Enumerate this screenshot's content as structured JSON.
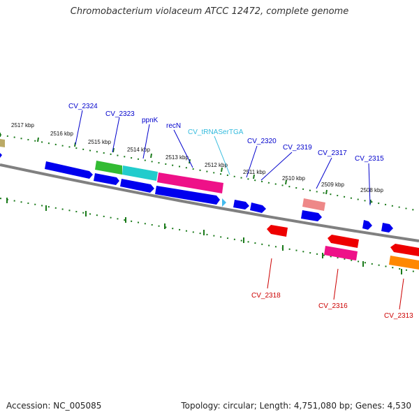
{
  "title": "Chromobacterium violaceum ATCC 12472, complete genome",
  "footer": {
    "accession": "Accession: NC_005085",
    "topology": "Topology: circular; Length: 4,751,080 bp; Genes: 4,530"
  },
  "scale_labels": [
    "2517 kbp",
    "2516 kbp",
    "2515 kbp",
    "2514 kbp",
    "2513 kbp",
    "2512 kbp",
    "2511 kbp",
    "2510 kbp",
    "2509 kbp",
    "2508 kbp"
  ],
  "gene_labels_forward": [
    {
      "name": "CV_2324",
      "color": "#0000cc"
    },
    {
      "name": "CV_2323",
      "color": "#0000cc"
    },
    {
      "name": "ppnK",
      "color": "#0000cc"
    },
    {
      "name": "recN",
      "color": "#0000cc"
    },
    {
      "name": "CV_tRNASerTGA",
      "color": "#33bbdd"
    },
    {
      "name": "CV_2320",
      "color": "#0000cc"
    },
    {
      "name": "CV_2319",
      "color": "#0000cc"
    },
    {
      "name": "CV_2317",
      "color": "#0000cc"
    },
    {
      "name": "CV_2315",
      "color": "#0000cc"
    }
  ],
  "gene_labels_reverse": [
    {
      "name": "CV_2318",
      "color": "#cc0000"
    },
    {
      "name": "CV_2316",
      "color": "#cc0000"
    },
    {
      "name": "CV_2313",
      "color": "#cc0000"
    }
  ],
  "colors": {
    "backbone": "#808080",
    "tick": "#1a7a1a",
    "forward_cds": "#0000ee",
    "reverse_cds": "#ee0000",
    "green_gene": "#33bb33",
    "cyan_gene": "#22cccc",
    "magenta_gene": "#ee1188",
    "salmon_gene": "#ee8888",
    "orange_gene": "#ff8800",
    "olive_gene": "#bbaa66",
    "trna": "#44bbee"
  }
}
